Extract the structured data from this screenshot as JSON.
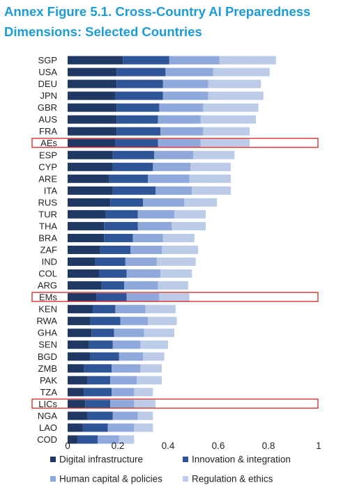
{
  "figure": {
    "title_line1": "Annex Figure 5.1. Cross-Country AI Preparedness",
    "title_line2": "Dimensions: Selected Countries"
  },
  "colors": {
    "title": "#1b9bd7",
    "highlight_box": "#e0322f"
  },
  "chart_data": {
    "type": "bar",
    "orientation": "horizontal",
    "stacked": true,
    "title": "Annex Figure 5.1. Cross-Country AI Preparedness Dimensions: Selected Countries",
    "categories": [
      "SGP",
      "USA",
      "DEU",
      "JPN",
      "GBR",
      "AUS",
      "FRA",
      "AEs",
      "ESP",
      "CYP",
      "ARE",
      "ITA",
      "RUS",
      "TUR",
      "THA",
      "BRA",
      "ZAF",
      "IND",
      "COL",
      "ARG",
      "EMs",
      "KEN",
      "RWA",
      "GHA",
      "SEN",
      "BGD",
      "ZMB",
      "PAK",
      "TZA",
      "LICs",
      "NGA",
      "LAO",
      "COD"
    ],
    "highlighted_categories": [
      "AEs",
      "EMs",
      "LICs"
    ],
    "series": [
      {
        "name": "Digital infrastructure",
        "color": "#203864",
        "values": [
          0.22,
          0.195,
          0.195,
          0.19,
          0.195,
          0.195,
          0.195,
          0.19,
          0.18,
          0.18,
          0.165,
          0.18,
          0.17,
          0.15,
          0.145,
          0.145,
          0.13,
          0.11,
          0.125,
          0.135,
          0.115,
          0.1,
          0.09,
          0.095,
          0.085,
          0.09,
          0.065,
          0.08,
          0.065,
          0.07,
          0.08,
          0.06,
          0.04
        ]
      },
      {
        "name": "Innovation & integration",
        "color": "#2e5597",
        "values": [
          0.185,
          0.195,
          0.185,
          0.19,
          0.17,
          0.165,
          0.175,
          0.17,
          0.165,
          0.16,
          0.155,
          0.17,
          0.13,
          0.13,
          0.135,
          0.115,
          0.12,
          0.12,
          0.11,
          0.09,
          0.12,
          0.09,
          0.12,
          0.09,
          0.095,
          0.115,
          0.11,
          0.09,
          0.11,
          0.1,
          0.1,
          0.1,
          0.08
        ]
      },
      {
        "name": "Human capital & policies",
        "color": "#8fa9dc",
        "values": [
          0.2,
          0.19,
          0.18,
          0.18,
          0.175,
          0.17,
          0.17,
          0.17,
          0.155,
          0.15,
          0.165,
          0.145,
          0.165,
          0.145,
          0.135,
          0.12,
          0.125,
          0.125,
          0.135,
          0.135,
          0.13,
          0.12,
          0.11,
          0.12,
          0.11,
          0.095,
          0.115,
          0.105,
          0.09,
          0.095,
          0.1,
          0.105,
          0.085
        ]
      },
      {
        "name": "Regulation & ethics",
        "color": "#bccbe8",
        "values": [
          0.225,
          0.225,
          0.21,
          0.22,
          0.22,
          0.22,
          0.185,
          0.195,
          0.165,
          0.16,
          0.165,
          0.155,
          0.13,
          0.125,
          0.135,
          0.125,
          0.145,
          0.155,
          0.125,
          0.12,
          0.12,
          0.12,
          0.115,
          0.12,
          0.11,
          0.085,
          0.085,
          0.1,
          0.075,
          0.085,
          0.06,
          0.075,
          0.06
        ]
      }
    ],
    "xlim": [
      0,
      1
    ],
    "xticks": [
      "0",
      "0.2",
      "0.4",
      "0.6",
      "0.8",
      "1"
    ],
    "grid": false,
    "legend_position": "bottom"
  }
}
